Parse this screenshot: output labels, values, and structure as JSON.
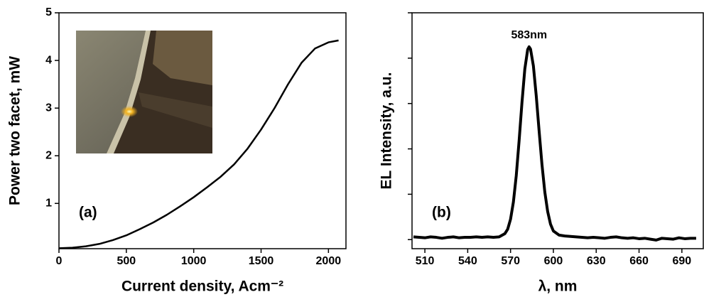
{
  "chart_data": [
    {
      "type": "line",
      "panel_label": "(a)",
      "xlabel": "Current density, Acm⁻²",
      "ylabel": "Power two facet, mW",
      "x": [
        0,
        100,
        200,
        300,
        400,
        500,
        600,
        700,
        800,
        900,
        1000,
        1100,
        1200,
        1300,
        1400,
        1500,
        1600,
        1700,
        1800,
        1900,
        2000,
        2075
      ],
      "values": [
        0.06,
        0.07,
        0.1,
        0.15,
        0.23,
        0.33,
        0.46,
        0.6,
        0.76,
        0.94,
        1.13,
        1.34,
        1.56,
        1.82,
        2.15,
        2.55,
        3.0,
        3.5,
        3.95,
        4.25,
        4.38,
        4.42
      ],
      "color": "#000000",
      "xlim": [
        0,
        2130
      ],
      "xticks": [
        0,
        500,
        1000,
        1500,
        2000
      ],
      "ylim": [
        0.05,
        5
      ],
      "yticks": [
        1,
        2,
        3,
        4,
        5
      ],
      "ytick_labels": true
    },
    {
      "type": "line",
      "panel_label": "(b)",
      "xlabel": "λ, nm",
      "ylabel": "EL Intensity, a.u.",
      "annotation": "583nm",
      "x": [
        502,
        506,
        510,
        514,
        518,
        522,
        526,
        530,
        534,
        538,
        542,
        546,
        550,
        554,
        558,
        562,
        566,
        568,
        570,
        572,
        574,
        576,
        578,
        580,
        582,
        583,
        584,
        586,
        588,
        590,
        592,
        594,
        596,
        598,
        600,
        604,
        608,
        612,
        616,
        620,
        624,
        628,
        632,
        636,
        640,
        644,
        648,
        652,
        656,
        660,
        664,
        668,
        672,
        676,
        680,
        684,
        688,
        692,
        696,
        700
      ],
      "values": [
        0.06,
        0.05,
        0.04,
        0.06,
        0.05,
        0.03,
        0.05,
        0.06,
        0.04,
        0.05,
        0.05,
        0.06,
        0.05,
        0.06,
        0.05,
        0.06,
        0.13,
        0.23,
        0.45,
        0.83,
        1.41,
        2.18,
        3.02,
        3.76,
        4.19,
        4.25,
        4.2,
        3.83,
        3.17,
        2.4,
        1.66,
        1.05,
        0.62,
        0.34,
        0.19,
        0.1,
        0.08,
        0.07,
        0.06,
        0.05,
        0.04,
        0.05,
        0.04,
        0.03,
        0.05,
        0.06,
        0.04,
        0.03,
        0.04,
        0.02,
        0.03,
        0.01,
        -0.01,
        0.03,
        0.02,
        0.01,
        0.04,
        0.02,
        0.03,
        0.03
      ],
      "color": "#000000",
      "xlim": [
        501,
        705
      ],
      "xticks": [
        510,
        540,
        570,
        600,
        630,
        660,
        690
      ],
      "ylim": [
        -0.2,
        5
      ],
      "yticks": [
        0,
        1,
        2,
        3,
        4,
        5
      ],
      "ytick_labels": false
    }
  ]
}
